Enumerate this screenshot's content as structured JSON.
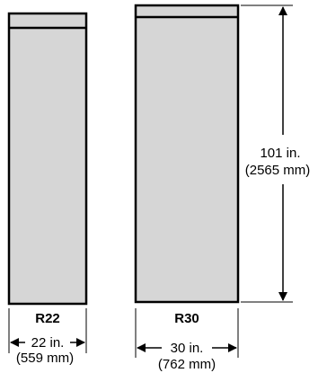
{
  "cabinets": [
    {
      "model": "R22",
      "width_in": "22 in.",
      "width_mm": "(559 mm)"
    },
    {
      "model": "R30",
      "width_in": "30 in.",
      "width_mm": "(762 mm)",
      "height_in": "101 in.",
      "height_mm": "(2565 mm)"
    }
  ],
  "colors": {
    "body_fill": "#d6d6d6",
    "outline": "#000000"
  }
}
